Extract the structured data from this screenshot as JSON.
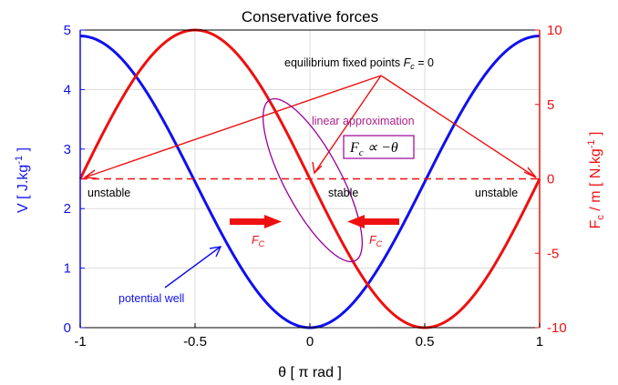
{
  "chart_data": {
    "type": "line",
    "title": "Conservative forces",
    "xlabel": "θ [ π rad ]",
    "ylabel_left": "V [ J.kg",
    "ylabel_left_sup": "-1",
    "ylabel_left_end": " ]",
    "ylabel_right": "F",
    "ylabel_right_sub": "c",
    "ylabel_right_mid": " / m [ N.kg",
    "ylabel_right_sup": "-1",
    "ylabel_right_end": " ]",
    "xlim": [
      -1,
      1
    ],
    "ylim_left": [
      0,
      5
    ],
    "ylim_right": [
      -10,
      10
    ],
    "x_ticks": [
      -1,
      -0.5,
      0,
      0.5,
      1
    ],
    "x_tick_labels": [
      "-1",
      "-0.5",
      "0",
      "0.5",
      "1"
    ],
    "y_left_ticks": [
      0,
      1,
      2,
      3,
      4,
      5
    ],
    "y_left_tick_labels": [
      "0",
      "1",
      "2",
      "3",
      "4",
      "5"
    ],
    "y_right_ticks": [
      -10,
      -5,
      0,
      5,
      10
    ],
    "y_right_tick_labels": [
      "-10",
      "-5",
      "0",
      "5",
      "10"
    ],
    "grid": true,
    "series": [
      {
        "axis": "left",
        "color": "#1010ee",
        "formula": "V = 2.45 * (1 - cos(pi * theta))",
        "x": [
          -1,
          -0.9,
          -0.8,
          -0.7,
          -0.6,
          -0.5,
          -0.4,
          -0.3,
          -0.2,
          -0.1,
          0,
          0.1,
          0.2,
          0.3,
          0.4,
          0.5,
          0.6,
          0.7,
          0.8,
          0.9,
          1
        ],
        "values": [
          4.9,
          4.78,
          4.43,
          3.89,
          3.21,
          2.45,
          1.69,
          1.01,
          0.47,
          0.12,
          0,
          0.12,
          0.47,
          1.01,
          1.69,
          2.45,
          3.21,
          3.89,
          4.43,
          4.78,
          4.9
        ]
      },
      {
        "axis": "right",
        "color": "#ee1010",
        "formula": "Fc/m = -10 * sin(pi * theta)",
        "x": [
          -1,
          -0.9,
          -0.8,
          -0.7,
          -0.6,
          -0.5,
          -0.4,
          -0.3,
          -0.2,
          -0.1,
          0,
          0.1,
          0.2,
          0.3,
          0.4,
          0.5,
          0.6,
          0.7,
          0.8,
          0.9,
          1
        ],
        "values": [
          0,
          3.09,
          5.88,
          8.09,
          9.51,
          10,
          9.51,
          8.09,
          5.88,
          3.09,
          0,
          -3.09,
          -5.88,
          -8.09,
          -9.51,
          -10,
          -9.51,
          -8.09,
          -5.88,
          -3.09,
          0
        ]
      }
    ],
    "annotations": {
      "equilibrium_prefix": "equilibrium fixed points ",
      "equilibrium_F": "F",
      "equilibrium_sub": "c",
      "equilibrium_suffix": " = 0",
      "linear_approx": "linear approximation",
      "formula_F": "F",
      "formula_sub": "c",
      "formula_rest": " ∝ −θ",
      "unstable_left": "unstable",
      "stable": "stable",
      "unstable_right": "unstable",
      "fc_label_F": "F",
      "fc_label_sub": "C",
      "potential_well": "potential well"
    },
    "colors": {
      "left_axis": "#1010ee",
      "right_axis": "#ee1010",
      "ellipse": "#990099",
      "linear_text": "#aa2288",
      "grid": "#dcdcdc"
    }
  }
}
